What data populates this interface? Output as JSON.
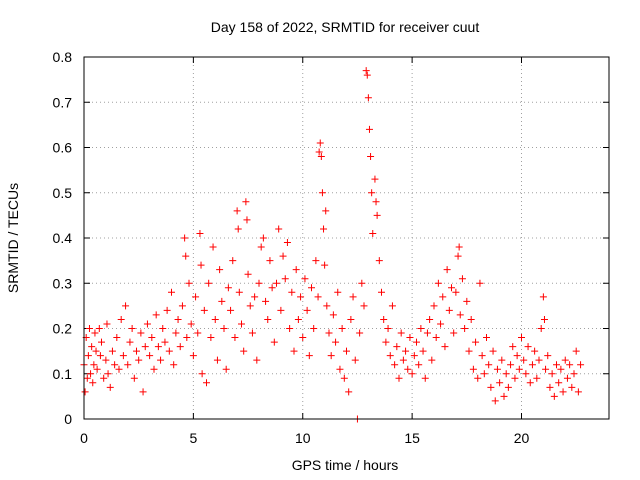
{
  "chart_data": {
    "type": "scatter",
    "title": "Day 158 of 2022, SRMTID for receiver cuut",
    "xlabel": "GPS time / hours",
    "ylabel": "SRMTID / TECUs",
    "xlim": [
      0,
      24
    ],
    "ylim": [
      0,
      0.8
    ],
    "xticks": [
      0,
      5,
      10,
      15,
      20
    ],
    "xtick_labels": [
      "0",
      "5",
      "10",
      "15",
      "20"
    ],
    "yticks": [
      0,
      0.1,
      0.2,
      0.3,
      0.4,
      0.5,
      0.6,
      0.7,
      0.8
    ],
    "ytick_labels": [
      "0",
      "0.1",
      "0.2",
      "0.3",
      "0.4",
      "0.5",
      "0.6",
      "0.7",
      "0.8"
    ],
    "grid": true,
    "marker": "plus",
    "color": "#ff0000",
    "series": [
      {
        "name": "SRMTID",
        "points": [
          [
            0.0,
            0.12
          ],
          [
            0.05,
            0.06
          ],
          [
            0.1,
            0.18
          ],
          [
            0.15,
            0.09
          ],
          [
            0.2,
            0.14
          ],
          [
            0.25,
            0.2
          ],
          [
            0.3,
            0.1
          ],
          [
            0.35,
            0.16
          ],
          [
            0.4,
            0.08
          ],
          [
            0.45,
            0.12
          ],
          [
            0.5,
            0.19
          ],
          [
            0.55,
            0.15
          ],
          [
            0.6,
            0.11
          ],
          [
            0.7,
            0.2
          ],
          [
            0.75,
            0.14
          ],
          [
            0.8,
            0.17
          ],
          [
            0.9,
            0.09
          ],
          [
            1.0,
            0.13
          ],
          [
            1.05,
            0.21
          ],
          [
            1.1,
            0.1
          ],
          [
            1.2,
            0.07
          ],
          [
            1.3,
            0.15
          ],
          [
            1.4,
            0.12
          ],
          [
            1.5,
            0.18
          ],
          [
            1.6,
            0.11
          ],
          [
            1.7,
            0.22
          ],
          [
            1.8,
            0.14
          ],
          [
            1.9,
            0.25
          ],
          [
            2.0,
            0.12
          ],
          [
            2.1,
            0.17
          ],
          [
            2.2,
            0.2
          ],
          [
            2.3,
            0.09
          ],
          [
            2.4,
            0.15
          ],
          [
            2.5,
            0.13
          ],
          [
            2.6,
            0.19
          ],
          [
            2.7,
            0.06
          ],
          [
            2.8,
            0.16
          ],
          [
            2.9,
            0.21
          ],
          [
            3.0,
            0.14
          ],
          [
            3.1,
            0.18
          ],
          [
            3.2,
            0.11
          ],
          [
            3.3,
            0.23
          ],
          [
            3.4,
            0.16
          ],
          [
            3.5,
            0.13
          ],
          [
            3.6,
            0.2
          ],
          [
            3.7,
            0.17
          ],
          [
            3.8,
            0.24
          ],
          [
            3.9,
            0.15
          ],
          [
            4.0,
            0.28
          ],
          [
            4.1,
            0.12
          ],
          [
            4.2,
            0.19
          ],
          [
            4.3,
            0.22
          ],
          [
            4.4,
            0.16
          ],
          [
            4.5,
            0.25
          ],
          [
            4.6,
            0.4
          ],
          [
            4.65,
            0.36
          ],
          [
            4.7,
            0.18
          ],
          [
            4.8,
            0.3
          ],
          [
            4.9,
            0.21
          ],
          [
            5.0,
            0.14
          ],
          [
            5.1,
            0.27
          ],
          [
            5.2,
            0.19
          ],
          [
            5.3,
            0.41
          ],
          [
            5.35,
            0.34
          ],
          [
            5.4,
            0.1
          ],
          [
            5.5,
            0.24
          ],
          [
            5.6,
            0.08
          ],
          [
            5.7,
            0.3
          ],
          [
            5.8,
            0.18
          ],
          [
            5.9,
            0.38
          ],
          [
            6.0,
            0.22
          ],
          [
            6.1,
            0.13
          ],
          [
            6.2,
            0.33
          ],
          [
            6.3,
            0.26
          ],
          [
            6.4,
            0.2
          ],
          [
            6.5,
            0.11
          ],
          [
            6.6,
            0.29
          ],
          [
            6.7,
            0.24
          ],
          [
            6.8,
            0.35
          ],
          [
            6.9,
            0.18
          ],
          [
            7.0,
            0.46
          ],
          [
            7.05,
            0.42
          ],
          [
            7.1,
            0.28
          ],
          [
            7.2,
            0.21
          ],
          [
            7.3,
            0.15
          ],
          [
            7.4,
            0.48
          ],
          [
            7.45,
            0.44
          ],
          [
            7.5,
            0.32
          ],
          [
            7.6,
            0.25
          ],
          [
            7.7,
            0.19
          ],
          [
            7.8,
            0.27
          ],
          [
            7.9,
            0.13
          ],
          [
            8.0,
            0.3
          ],
          [
            8.1,
            0.38
          ],
          [
            8.2,
            0.4
          ],
          [
            8.3,
            0.26
          ],
          [
            8.4,
            0.22
          ],
          [
            8.5,
            0.35
          ],
          [
            8.6,
            0.29
          ],
          [
            8.7,
            0.17
          ],
          [
            8.8,
            0.3
          ],
          [
            8.9,
            0.42
          ],
          [
            9.0,
            0.24
          ],
          [
            9.1,
            0.36
          ],
          [
            9.2,
            0.31
          ],
          [
            9.3,
            0.39
          ],
          [
            9.4,
            0.2
          ],
          [
            9.5,
            0.28
          ],
          [
            9.6,
            0.15
          ],
          [
            9.7,
            0.33
          ],
          [
            9.8,
            0.22
          ],
          [
            9.9,
            0.27
          ],
          [
            10.0,
            0.18
          ],
          [
            10.1,
            0.31
          ],
          [
            10.2,
            0.24
          ],
          [
            10.3,
            0.14
          ],
          [
            10.4,
            0.29
          ],
          [
            10.5,
            0.2
          ],
          [
            10.6,
            0.35
          ],
          [
            10.7,
            0.27
          ],
          [
            10.75,
            0.59
          ],
          [
            10.8,
            0.61
          ],
          [
            10.85,
            0.58
          ],
          [
            10.9,
            0.5
          ],
          [
            10.95,
            0.42
          ],
          [
            11.0,
            0.34
          ],
          [
            11.05,
            0.46
          ],
          [
            11.1,
            0.25
          ],
          [
            11.2,
            0.19
          ],
          [
            11.3,
            0.14
          ],
          [
            11.4,
            0.23
          ],
          [
            11.5,
            0.17
          ],
          [
            11.6,
            0.28
          ],
          [
            11.7,
            0.11
          ],
          [
            11.8,
            0.2
          ],
          [
            11.9,
            0.09
          ],
          [
            12.0,
            0.15
          ],
          [
            12.1,
            0.06
          ],
          [
            12.2,
            0.22
          ],
          [
            12.3,
            0.27
          ],
          [
            12.4,
            0.13
          ],
          [
            12.5,
            0.0
          ],
          [
            12.6,
            0.19
          ],
          [
            12.7,
            0.3
          ],
          [
            12.8,
            0.25
          ],
          [
            12.9,
            0.77
          ],
          [
            12.95,
            0.76
          ],
          [
            13.0,
            0.71
          ],
          [
            13.05,
            0.64
          ],
          [
            13.1,
            0.58
          ],
          [
            13.15,
            0.5
          ],
          [
            13.2,
            0.41
          ],
          [
            13.3,
            0.53
          ],
          [
            13.35,
            0.48
          ],
          [
            13.4,
            0.45
          ],
          [
            13.5,
            0.35
          ],
          [
            13.6,
            0.28
          ],
          [
            13.7,
            0.22
          ],
          [
            13.8,
            0.17
          ],
          [
            13.9,
            0.2
          ],
          [
            14.0,
            0.14
          ],
          [
            14.1,
            0.25
          ],
          [
            14.2,
            0.12
          ],
          [
            14.3,
            0.16
          ],
          [
            14.4,
            0.09
          ],
          [
            14.5,
            0.19
          ],
          [
            14.6,
            0.13
          ],
          [
            14.7,
            0.15
          ],
          [
            14.8,
            0.11
          ],
          [
            14.9,
            0.18
          ],
          [
            15.0,
            0.1
          ],
          [
            15.1,
            0.14
          ],
          [
            15.2,
            0.17
          ],
          [
            15.3,
            0.12
          ],
          [
            15.4,
            0.2
          ],
          [
            15.5,
            0.15
          ],
          [
            15.6,
            0.09
          ],
          [
            15.7,
            0.19
          ],
          [
            15.8,
            0.22
          ],
          [
            15.9,
            0.13
          ],
          [
            16.0,
            0.25
          ],
          [
            16.1,
            0.18
          ],
          [
            16.2,
            0.3
          ],
          [
            16.3,
            0.21
          ],
          [
            16.4,
            0.27
          ],
          [
            16.5,
            0.16
          ],
          [
            16.6,
            0.33
          ],
          [
            16.7,
            0.24
          ],
          [
            16.8,
            0.29
          ],
          [
            16.9,
            0.19
          ],
          [
            17.0,
            0.28
          ],
          [
            17.1,
            0.36
          ],
          [
            17.15,
            0.38
          ],
          [
            17.2,
            0.23
          ],
          [
            17.3,
            0.31
          ],
          [
            17.4,
            0.2
          ],
          [
            17.5,
            0.26
          ],
          [
            17.6,
            0.15
          ],
          [
            17.7,
            0.22
          ],
          [
            17.8,
            0.11
          ],
          [
            17.9,
            0.17
          ],
          [
            18.0,
            0.09
          ],
          [
            18.1,
            0.3
          ],
          [
            18.2,
            0.14
          ],
          [
            18.3,
            0.1
          ],
          [
            18.4,
            0.18
          ],
          [
            18.5,
            0.12
          ],
          [
            18.6,
            0.07
          ],
          [
            18.7,
            0.15
          ],
          [
            18.8,
            0.04
          ],
          [
            18.9,
            0.11
          ],
          [
            19.0,
            0.08
          ],
          [
            19.1,
            0.13
          ],
          [
            19.2,
            0.05
          ],
          [
            19.3,
            0.1
          ],
          [
            19.4,
            0.07
          ],
          [
            19.5,
            0.12
          ],
          [
            19.6,
            0.16
          ],
          [
            19.7,
            0.09
          ],
          [
            19.8,
            0.14
          ],
          [
            19.9,
            0.11
          ],
          [
            20.0,
            0.18
          ],
          [
            20.1,
            0.13
          ],
          [
            20.2,
            0.1
          ],
          [
            20.3,
            0.16
          ],
          [
            20.4,
            0.08
          ],
          [
            20.5,
            0.12
          ],
          [
            20.6,
            0.15
          ],
          [
            20.7,
            0.09
          ],
          [
            20.8,
            0.13
          ],
          [
            20.9,
            0.2
          ],
          [
            21.0,
            0.27
          ],
          [
            21.05,
            0.22
          ],
          [
            21.1,
            0.11
          ],
          [
            21.2,
            0.14
          ],
          [
            21.3,
            0.07
          ],
          [
            21.4,
            0.1
          ],
          [
            21.5,
            0.05
          ],
          [
            21.6,
            0.12
          ],
          [
            21.7,
            0.08
          ],
          [
            21.8,
            0.11
          ],
          [
            21.9,
            0.06
          ],
          [
            22.0,
            0.13
          ],
          [
            22.1,
            0.09
          ],
          [
            22.2,
            0.12
          ],
          [
            22.3,
            0.07
          ],
          [
            22.4,
            0.1
          ],
          [
            22.5,
            0.15
          ],
          [
            22.6,
            0.06
          ],
          [
            22.7,
            0.12
          ]
        ]
      }
    ]
  }
}
